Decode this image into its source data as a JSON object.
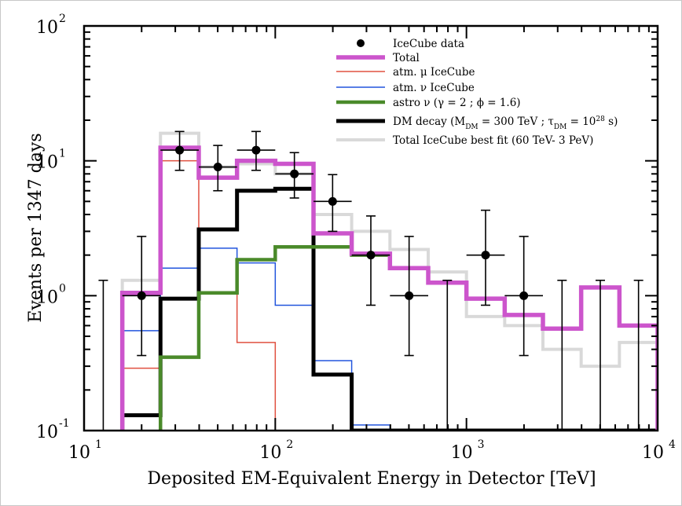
{
  "chart_data": {
    "type": "step-histogram",
    "xlabel": "Deposited EM-Equivalent Energy in Detector [TeV]",
    "ylabel": "Events per 1347 days",
    "x_scale": "log",
    "y_scale": "log",
    "xlim": [
      10,
      10000
    ],
    "ylim": [
      0.1,
      100
    ],
    "x_ticks": [
      {
        "value": 10,
        "base": "10",
        "exp": "1"
      },
      {
        "value": 100,
        "base": "10",
        "exp": "2"
      },
      {
        "value": 1000,
        "base": "10",
        "exp": "3"
      },
      {
        "value": 10000,
        "base": "10",
        "exp": "4"
      }
    ],
    "y_ticks": [
      {
        "value": 0.1,
        "base": "10",
        "exp": "-1"
      },
      {
        "value": 1,
        "base": "10",
        "exp": "0"
      },
      {
        "value": 10,
        "base": "10",
        "exp": "1"
      },
      {
        "value": 100,
        "base": "10",
        "exp": "2"
      }
    ],
    "legend_position": "top-right",
    "series": [
      {
        "name": "Total IceCube best fit (60 TeV- 3 PeV)",
        "color": "#d9d9d9",
        "width": 4,
        "edges": [
          15.85,
          25.1,
          39.8,
          63.1,
          100,
          158.5,
          251,
          398,
          631,
          1000,
          1585,
          2512,
          3981,
          6310,
          10000
        ],
        "values": [
          1.3,
          16,
          9,
          9.5,
          8,
          4,
          3,
          2.2,
          1.5,
          0.7,
          0.6,
          0.4,
          0.3,
          0.45,
          0.2
        ]
      },
      {
        "name": "atm. μ IceCube",
        "color": "#e05040",
        "width": 1.5,
        "edges": [
          15.85,
          25.1,
          39.8,
          63.1,
          100
        ],
        "values": [
          0.29,
          10,
          1.05,
          0.45,
          0.1
        ]
      },
      {
        "name": "atm. ν IceCube",
        "color": "#2255dd",
        "width": 1.5,
        "edges": [
          15.85,
          25.1,
          39.8,
          63.1,
          100,
          158.5,
          251,
          398
        ],
        "values": [
          0.55,
          1.6,
          2.25,
          1.75,
          0.85,
          0.33,
          0.11,
          0.1
        ]
      },
      {
        "name": "DM decay (M_DM = 300 TeV ; τ_DM = 10^28 s)",
        "color": "#000000",
        "width": 5,
        "edges": [
          15.85,
          25.1,
          39.8,
          63.1,
          100,
          158.5,
          251
        ],
        "values": [
          0.13,
          0.95,
          3.1,
          6,
          6.2,
          0.26,
          0.1
        ]
      },
      {
        "name": "astro ν (γ = 2 ; ϕ = 1.6)",
        "color": "#4a8a2a",
        "width": 4.5,
        "edges": [
          25.1,
          39.8,
          63.1,
          100,
          158.5,
          251,
          398
        ],
        "values": [
          0.35,
          1.05,
          1.85,
          2.3,
          2.3,
          2.0
        ]
      },
      {
        "name": "Total",
        "color": "#cc55cc",
        "width": 5.5,
        "edges": [
          15.85,
          25.1,
          39.8,
          63.1,
          100,
          158.5,
          251,
          398,
          631,
          1000,
          1585,
          2512,
          3981,
          6310,
          10000
        ],
        "values": [
          1.05,
          12.5,
          7.5,
          10,
          9.5,
          2.9,
          2.05,
          1.6,
          1.25,
          0.95,
          0.72,
          0.57,
          1.15,
          0.6,
          0.1
        ]
      }
    ],
    "data_points": {
      "name": "IceCube data",
      "points": [
        {
          "x": 20,
          "y": 1,
          "xlo": 15.85,
          "xhi": 25.1,
          "ylo": 0.36,
          "yhi": 2.75
        },
        {
          "x": 31.6,
          "y": 12,
          "xlo": 25.1,
          "xhi": 39.8,
          "ylo": 8.5,
          "yhi": 16.5
        },
        {
          "x": 50.1,
          "y": 9,
          "xlo": 39.8,
          "xhi": 63.1,
          "ylo": 6,
          "yhi": 13
        },
        {
          "x": 79.4,
          "y": 12,
          "xlo": 63.1,
          "xhi": 100,
          "ylo": 8.5,
          "yhi": 16.5
        },
        {
          "x": 125.9,
          "y": 8,
          "xlo": 100,
          "xhi": 158.5,
          "ylo": 5.3,
          "yhi": 11.5
        },
        {
          "x": 199.5,
          "y": 5,
          "xlo": 158.5,
          "xhi": 251,
          "ylo": 3,
          "yhi": 7.9
        },
        {
          "x": 316.2,
          "y": 2,
          "xlo": 251,
          "xhi": 398,
          "ylo": 0.85,
          "yhi": 3.9
        },
        {
          "x": 501.2,
          "y": 1,
          "xlo": 398,
          "xhi": 631,
          "ylo": 0.36,
          "yhi": 2.75
        },
        {
          "x": 1258.9,
          "y": 2,
          "xlo": 1000,
          "xhi": 1585,
          "ylo": 0.85,
          "yhi": 4.3
        },
        {
          "x": 1995.3,
          "y": 1,
          "xlo": 1585,
          "xhi": 2512,
          "ylo": 0.36,
          "yhi": 2.75
        }
      ],
      "upper_limits": [
        {
          "x": 12.6,
          "yhi": 1.3
        },
        {
          "x": 794,
          "yhi": 1.3
        },
        {
          "x": 3162,
          "yhi": 1.3
        },
        {
          "x": 5012,
          "yhi": 1.3
        },
        {
          "x": 7943,
          "yhi": 1.3
        }
      ]
    },
    "legend": [
      {
        "label": "IceCube data",
        "kind": "marker",
        "color": "#000000"
      },
      {
        "label": "Total",
        "kind": "line",
        "color": "#cc55cc",
        "width": 5.5
      },
      {
        "label": "atm. μ IceCube",
        "kind": "line",
        "color": "#e05040",
        "width": 1.5
      },
      {
        "label": "atm. ν IceCube",
        "kind": "line",
        "color": "#2255dd",
        "width": 1.5
      },
      {
        "label": "astro ν (γ = 2  ;  ϕ  = 1.6)",
        "kind": "line",
        "color": "#4a8a2a",
        "width": 4.5
      },
      {
        "label_parts": [
          "DM decay (M",
          "DM",
          " = 300 TeV  ;  τ",
          "DM",
          " = 10",
          "28",
          " s)"
        ],
        "kind": "line",
        "color": "#000000",
        "width": 5
      },
      {
        "label": "Total IceCube best fit (60 TeV- 3 PeV)",
        "kind": "line",
        "color": "#d9d9d9",
        "width": 4
      }
    ]
  }
}
